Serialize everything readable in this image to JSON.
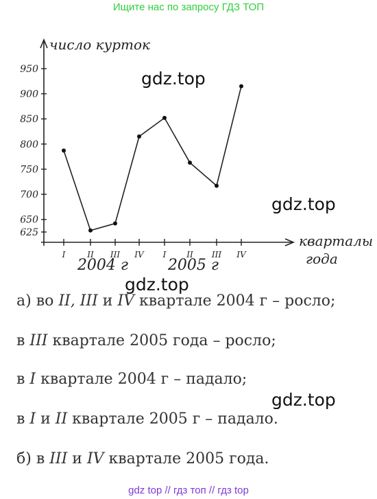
{
  "banner": "Ищите нас по запросу ГДЗ ТОП",
  "watermark": "gdz.top",
  "footer": "gdz top  //  гдз топ  //  гдз top",
  "chart_data": {
    "type": "line",
    "ylabel": "число курток",
    "xlabel": "кварталы года",
    "y_ticks": [
      625,
      650,
      700,
      750,
      800,
      850,
      900,
      950
    ],
    "ylim": [
      600,
      980
    ],
    "categories": [
      "I",
      "II",
      "III",
      "IV",
      "I",
      "II",
      "III",
      "IV"
    ],
    "year_labels": [
      "2004 г",
      "2005 г"
    ],
    "values": [
      787,
      628,
      642,
      815,
      852,
      763,
      717,
      915
    ]
  },
  "answers": [
    {
      "pre": "а) во ",
      "it": "II, III",
      "mid": " и ",
      "it2": "IV",
      "post": " квартале 2004 г – росло;"
    },
    {
      "pre": "в ",
      "it": "III",
      "mid": "",
      "it2": "",
      "post": " квартале 2005 года – росло;"
    },
    {
      "pre": "в ",
      "it": "I",
      "mid": "",
      "it2": "",
      "post": " квартале 2004 г – падало;"
    },
    {
      "pre": "в ",
      "it": "I",
      "mid": " и ",
      "it2": "II",
      "post": " квартале 2005 г – падало."
    },
    {
      "pre": "б) в ",
      "it": "III",
      "mid": " и ",
      "it2": "IV",
      "post": " квартале 2005 года."
    }
  ]
}
